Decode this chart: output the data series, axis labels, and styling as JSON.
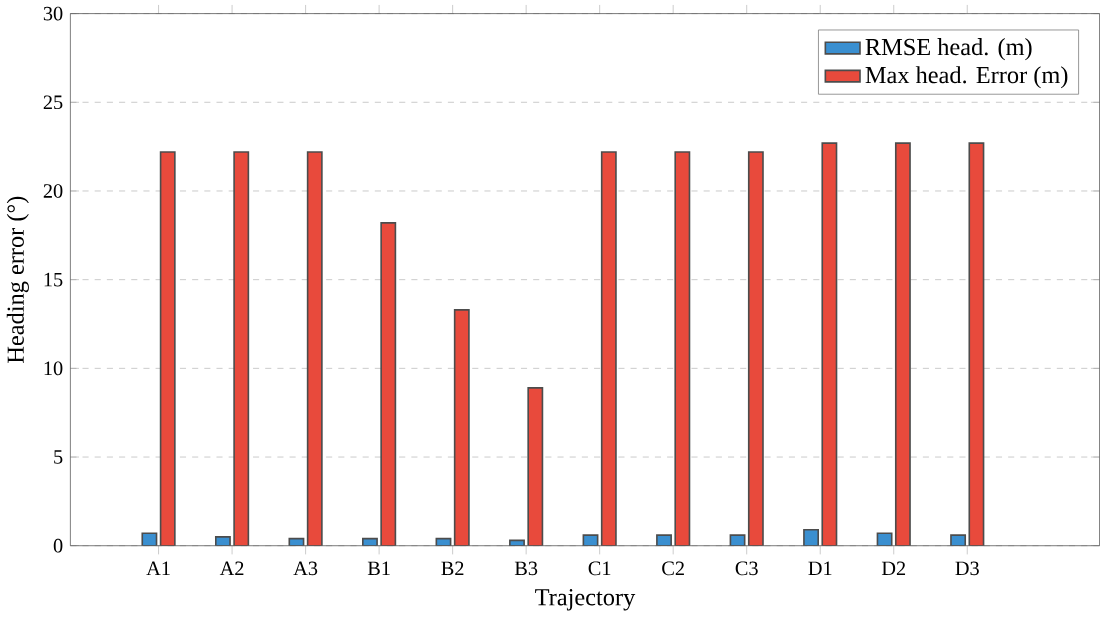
{
  "chart_data": {
    "type": "bar",
    "xlabel": "Trajectory",
    "ylabel": "Heading error (°)",
    "categories": [
      "A1",
      "A2",
      "A3",
      "B1",
      "B2",
      "B3",
      "C1",
      "C2",
      "C3",
      "D1",
      "D2",
      "D3"
    ],
    "series": [
      {
        "name": "RMSE head. (m)",
        "color": "#3a8fd0",
        "values": [
          0.7,
          0.5,
          0.4,
          0.4,
          0.4,
          0.3,
          0.6,
          0.6,
          0.6,
          0.9,
          0.7,
          0.6
        ]
      },
      {
        "name": "Max head. Error (m)",
        "color": "#e84a3c",
        "values": [
          22.2,
          22.2,
          22.2,
          18.2,
          13.3,
          8.9,
          22.2,
          22.2,
          22.2,
          22.7,
          22.7,
          22.7
        ]
      }
    ],
    "ylim": [
      0,
      30
    ],
    "yticks": [
      0,
      5,
      10,
      15,
      20,
      25,
      30
    ],
    "grid": "y",
    "legend": "top right"
  }
}
